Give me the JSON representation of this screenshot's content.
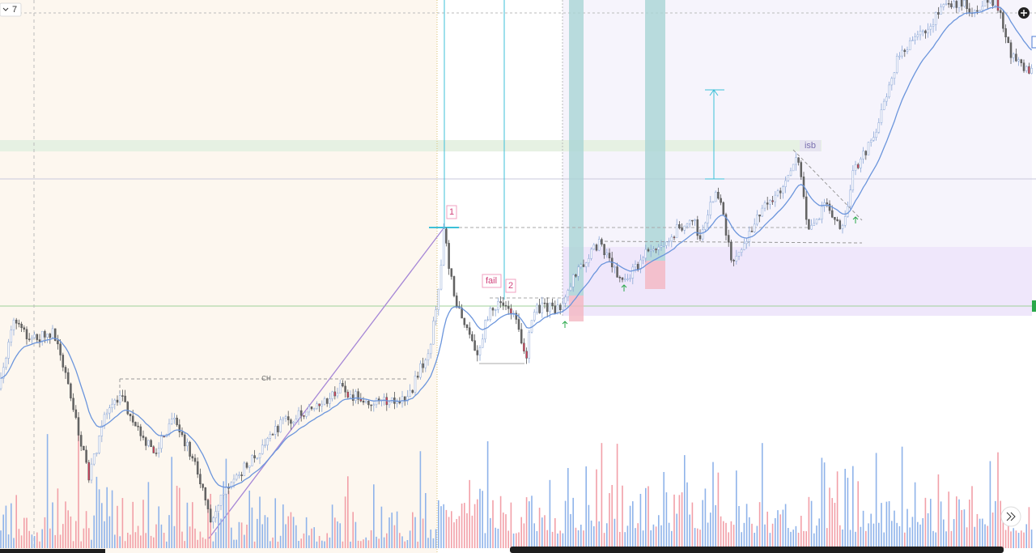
{
  "toolbar": {
    "interval": "7"
  },
  "annotations": {
    "pivot_1": "1",
    "fail": "fail",
    "pivot_2": "2",
    "isb": "isb",
    "ch": "CH"
  }
}
